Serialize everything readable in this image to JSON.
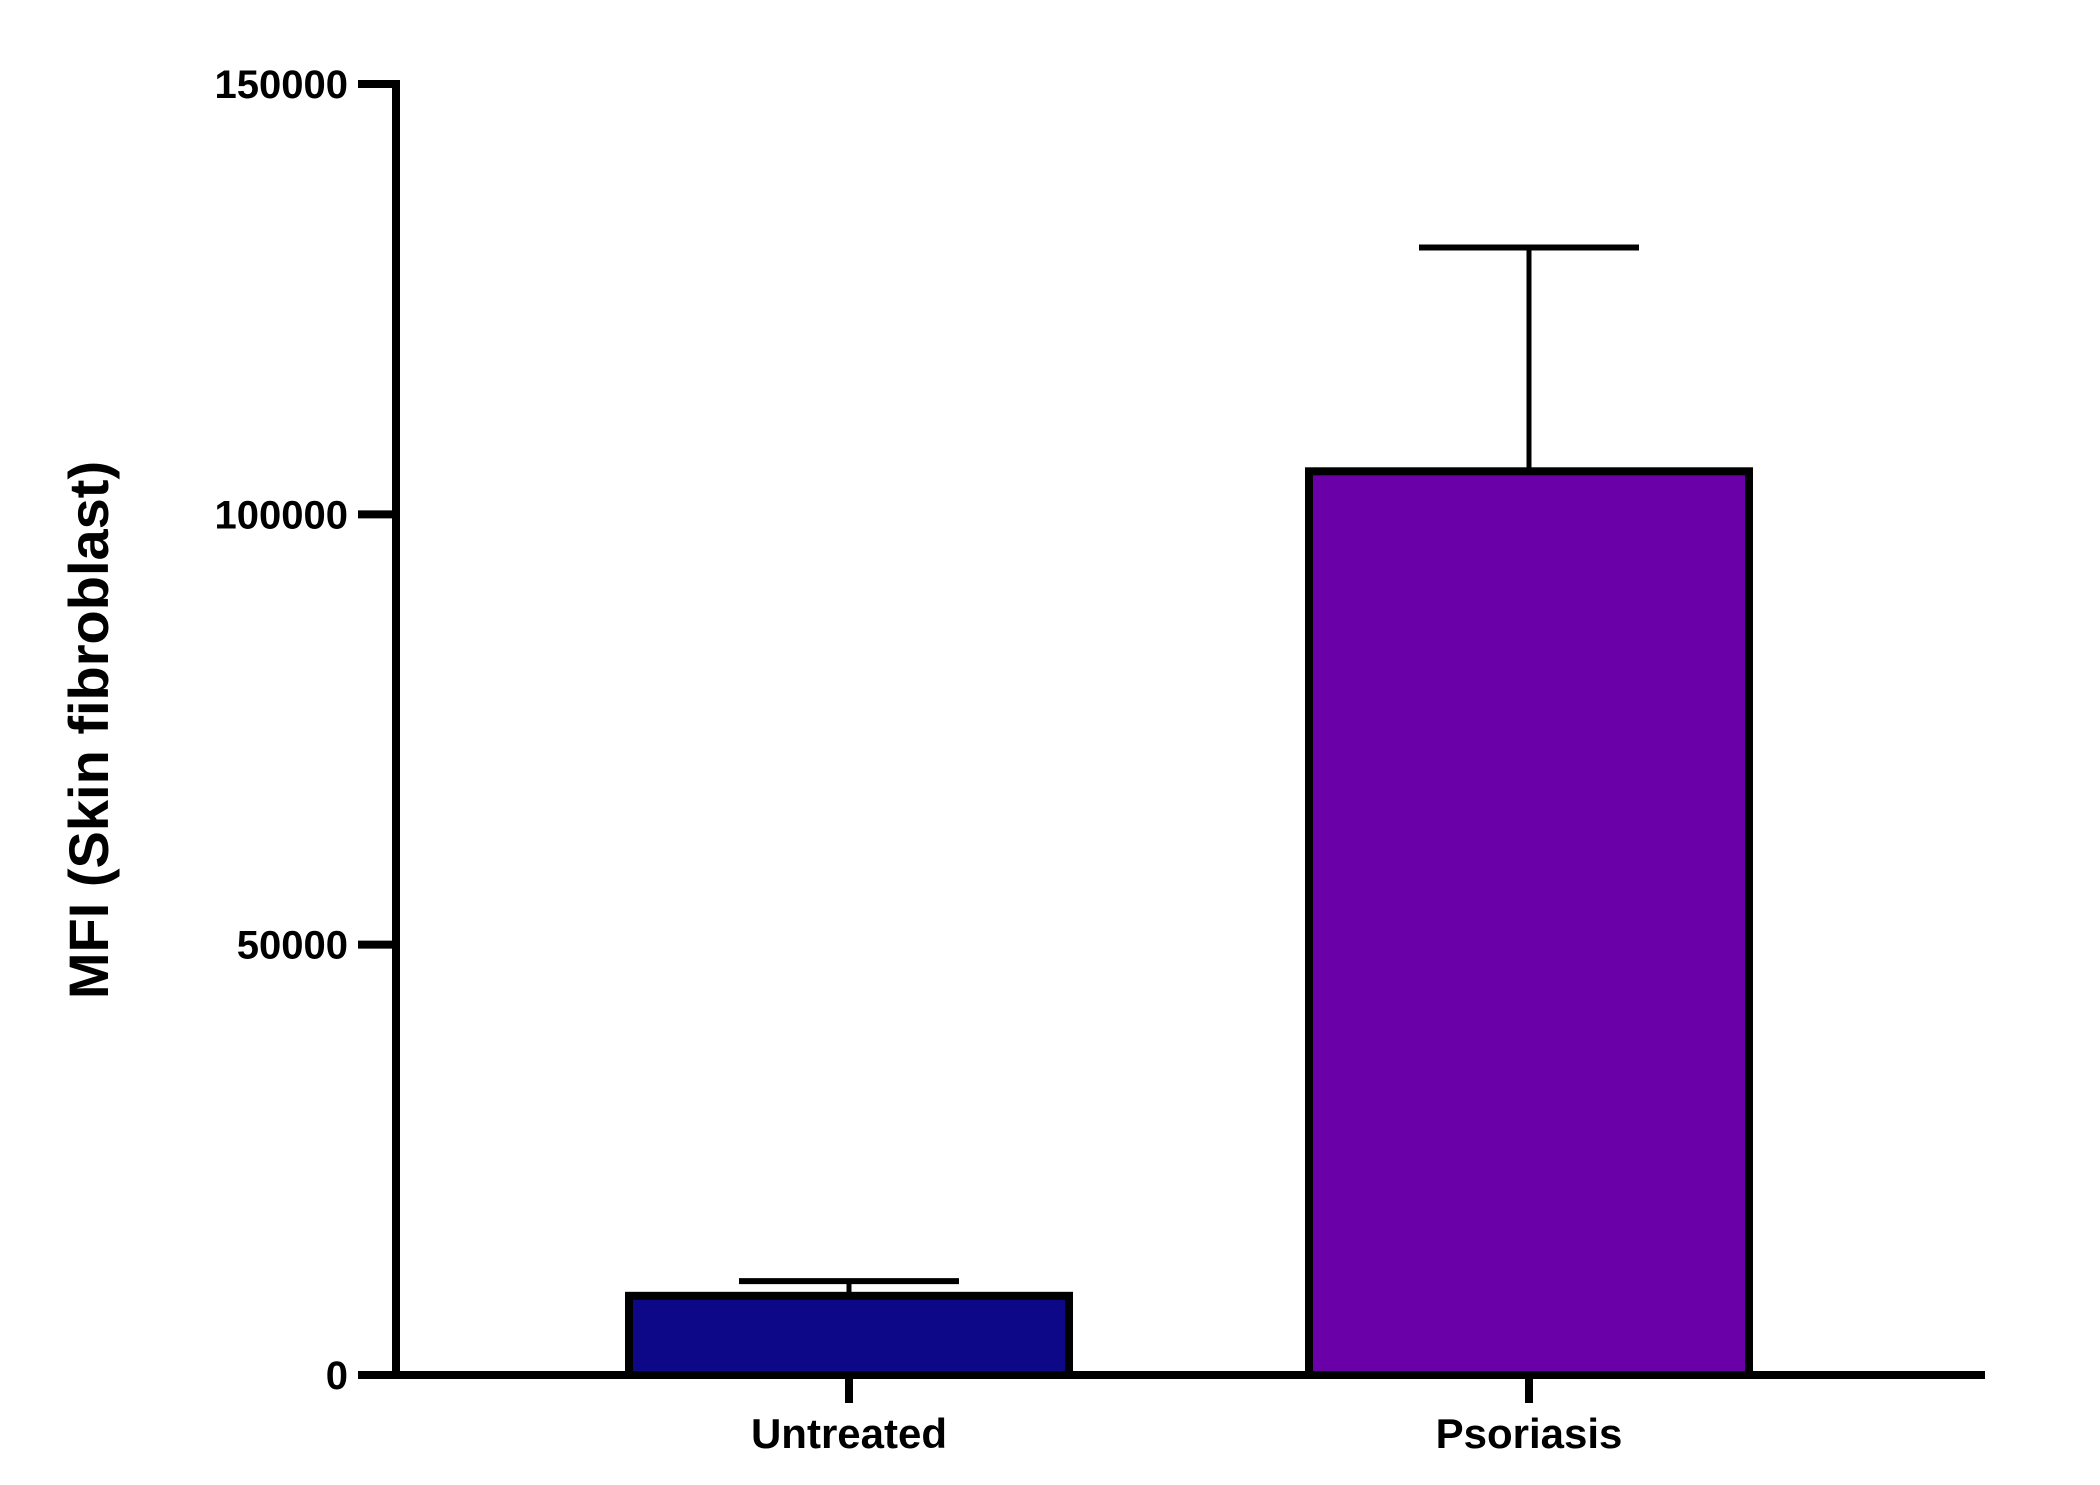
{
  "chart_data": {
    "type": "bar",
    "title": "",
    "xlabel": "",
    "ylabel": "MFI (Skin fibroblast)",
    "ylim": [
      0,
      150000
    ],
    "yticks": [
      "0",
      "50000",
      "100000",
      "150000"
    ],
    "ytick_values": [
      0,
      50000,
      100000,
      150000
    ],
    "categories": [
      "Untreated",
      "Psoriasis"
    ],
    "values": [
      9200,
      105000
    ],
    "error_upper": [
      10900,
      131000
    ],
    "colors": [
      "#0d0887",
      "#6a00a8"
    ],
    "grid": false,
    "legend": "none"
  }
}
